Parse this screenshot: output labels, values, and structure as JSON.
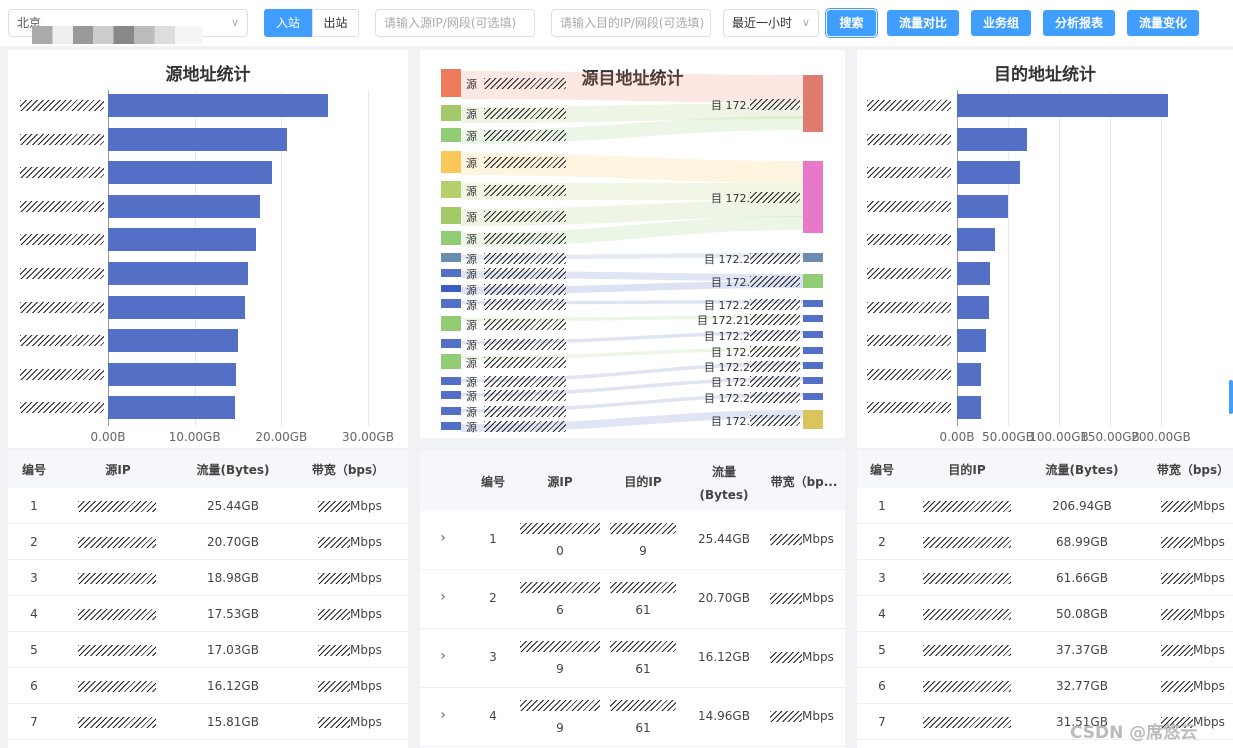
{
  "toolbar": {
    "region_select": "北京",
    "direction_in": "入站",
    "direction_out": "出站",
    "src_placeholder": "请输入源IP/网段(可选填)",
    "dst_placeholder": "请输入目的IP/网段(可选填)",
    "time_select": "最近一小时",
    "search_label": "搜索",
    "compare_label": "流量对比",
    "business_label": "业务组",
    "report_label": "分析报表",
    "change_label": "流量变化"
  },
  "source_chart": {
    "title": "源地址统计",
    "x_ticks": [
      "0.00B",
      "10.00GB",
      "20.00GB",
      "30.00GB"
    ]
  },
  "sankey": {
    "title": "源目地址统计",
    "src_prefix": "源",
    "dst_prefix": "目 172.",
    "dst_labels": [
      "目 172.",
      "目 172.",
      "目 172.2",
      "目 172.",
      "目 172.2",
      "目 172.21",
      "目 172.2",
      "目 172.",
      "目 172.2",
      "目 172.",
      "目 172.2",
      "目 172."
    ]
  },
  "dest_chart": {
    "title": "目的地址统计",
    "x_ticks": [
      "0.00B",
      "50.00GB",
      "100.00GB",
      "150.00GB",
      "200.00GB"
    ]
  },
  "chart_data": [
    {
      "type": "bar",
      "title": "源地址统计",
      "orientation": "horizontal",
      "values": [
        25.44,
        20.7,
        18.98,
        17.53,
        17.03,
        16.12,
        15.81,
        14.96,
        14.8,
        14.7
      ],
      "unit": "GB",
      "xlim": [
        0,
        30
      ]
    },
    {
      "type": "bar",
      "title": "目的地址统计",
      "orientation": "horizontal",
      "values": [
        206.94,
        68.99,
        61.66,
        50.08,
        37.37,
        32.77,
        31.51,
        28.0,
        24.0,
        24.0
      ],
      "unit": "GB",
      "xlim": [
        0,
        200
      ]
    }
  ],
  "source_table": {
    "headers": [
      "编号",
      "源IP",
      "流量(Bytes)",
      "带宽（bps）"
    ],
    "bw_suffix": "Mbps",
    "rows": [
      {
        "no": "1",
        "traffic": "25.44GB"
      },
      {
        "no": "2",
        "traffic": "20.70GB"
      },
      {
        "no": "3",
        "traffic": "18.98GB"
      },
      {
        "no": "4",
        "traffic": "17.53GB"
      },
      {
        "no": "5",
        "traffic": "17.03GB"
      },
      {
        "no": "6",
        "traffic": "16.12GB"
      },
      {
        "no": "7",
        "traffic": "15.81GB"
      }
    ]
  },
  "pair_table": {
    "headers": [
      "编号",
      "源IP",
      "目的IP",
      "流量(Bytes)",
      "带宽（bp..."
    ],
    "bw_suffix": "Mbps",
    "expand_icon": "›",
    "rows": [
      {
        "no": "1",
        "src_tail": "0",
        "dst_tail": "9",
        "traffic": "25.44GB"
      },
      {
        "no": "2",
        "src_tail": "6",
        "dst_tail": "61",
        "traffic": "20.70GB"
      },
      {
        "no": "3",
        "src_tail": "9",
        "dst_tail": "61",
        "traffic": "16.12GB"
      },
      {
        "no": "4",
        "src_tail": "9",
        "dst_tail": "61",
        "traffic": "14.96GB"
      }
    ]
  },
  "dest_table": {
    "headers": [
      "编号",
      "目的IP",
      "流量(Bytes)",
      "带宽（bps）"
    ],
    "bw_suffix": "Mbps",
    "rows": [
      {
        "no": "1",
        "traffic": "206.94GB"
      },
      {
        "no": "2",
        "traffic": "68.99GB"
      },
      {
        "no": "3",
        "traffic": "61.66GB"
      },
      {
        "no": "4",
        "traffic": "50.08GB"
      },
      {
        "no": "5",
        "traffic": "37.37GB"
      },
      {
        "no": "6",
        "traffic": "32.77GB"
      },
      {
        "no": "7",
        "traffic": "31.51GB"
      }
    ]
  },
  "watermark": "CSDN @席悠云"
}
